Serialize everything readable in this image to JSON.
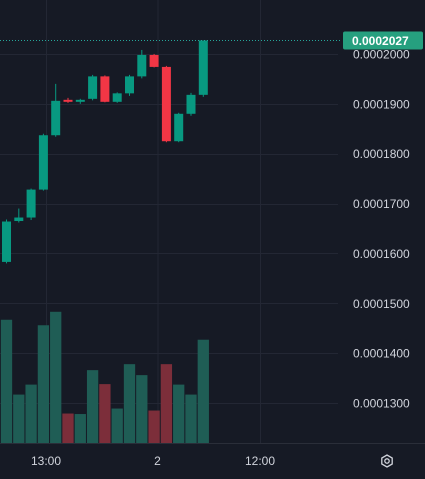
{
  "colors": {
    "background": "#161a25",
    "grid": "#232734",
    "axis_text": "#d1d4dc",
    "up": "#089981",
    "down": "#f23645",
    "volume_up": "#1f5d55",
    "volume_down": "#7c2e3a",
    "price_badge": "#26a07f",
    "price_line": "#26a69a"
  },
  "chart_data": {
    "type": "candlestick",
    "x_ticks": [
      "13:00",
      "2",
      "12:00"
    ],
    "y_ticks": [
      "0.0002000",
      "0.0001900",
      "0.0001800",
      "0.0001700",
      "0.0001600",
      "0.0001500",
      "0.0001400",
      "0.0001300"
    ],
    "ylim": [
      0.0001253,
      0.0002046
    ],
    "last_price": "0.0002027",
    "settings_icon": "settings-hexagon-icon",
    "candles": [
      {
        "o": 0.0001583,
        "h": 0.0001668,
        "l": 0.000158,
        "c": 0.0001664,
        "vol": 0.0001467
      },
      {
        "o": 0.0001665,
        "h": 0.000169,
        "l": 0.0001662,
        "c": 0.0001672,
        "vol": 0.0001317
      },
      {
        "o": 0.0001672,
        "h": 0.000173,
        "l": 0.0001667,
        "c": 0.0001728,
        "vol": 0.0001337
      },
      {
        "o": 0.0001728,
        "h": 0.000184,
        "l": 0.0001726,
        "c": 0.0001837,
        "vol": 0.0001456
      },
      {
        "o": 0.0001837,
        "h": 0.000194,
        "l": 0.0001834,
        "c": 0.0001906,
        "vol": 0.0001483
      },
      {
        "o": 0.0001908,
        "h": 0.0001912,
        "l": 0.0001902,
        "c": 0.0001904,
        "vol": 0.0001279
      },
      {
        "o": 0.0001904,
        "h": 0.000191,
        "l": 0.00019,
        "c": 0.0001908,
        "vol": 0.0001278
      },
      {
        "o": 0.000191,
        "h": 0.0001958,
        "l": 0.0001907,
        "c": 0.0001955,
        "vol": 0.0001366
      },
      {
        "o": 0.0001955,
        "h": 0.0001957,
        "l": 0.0001903,
        "c": 0.0001904,
        "vol": 0.0001338
      },
      {
        "o": 0.0001904,
        "h": 0.0001923,
        "l": 0.0001902,
        "c": 0.0001921,
        "vol": 0.0001289
      },
      {
        "o": 0.0001921,
        "h": 0.0001958,
        "l": 0.0001916,
        "c": 0.0001955,
        "vol": 0.0001378
      },
      {
        "o": 0.0001955,
        "h": 0.0002008,
        "l": 0.0001951,
        "c": 0.0001998,
        "vol": 0.0001356
      },
      {
        "o": 0.0001998,
        "h": 0.0002,
        "l": 0.0001973,
        "c": 0.0001974,
        "vol": 0.0001285
      },
      {
        "o": 0.0001974,
        "h": 0.0001976,
        "l": 0.0001823,
        "c": 0.0001825,
        "vol": 0.0001378
      },
      {
        "o": 0.0001825,
        "h": 0.0001882,
        "l": 0.0001823,
        "c": 0.000188,
        "vol": 0.0001337
      },
      {
        "o": 0.000188,
        "h": 0.0001922,
        "l": 0.0001876,
        "c": 0.0001918,
        "vol": 0.0001317
      },
      {
        "o": 0.0001918,
        "h": 0.0002027,
        "l": 0.0001914,
        "c": 0.0002027,
        "vol": 0.0001427
      }
    ]
  }
}
